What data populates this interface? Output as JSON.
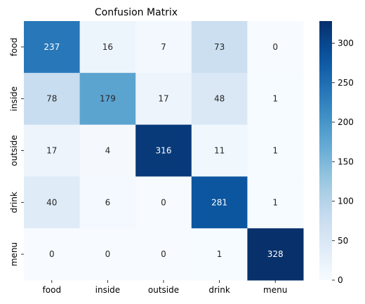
{
  "chart_data": {
    "type": "heatmap",
    "title": "Confusion Matrix",
    "xlabel": "",
    "ylabel": "",
    "row_labels": [
      "food",
      "inside",
      "outside",
      "drink",
      "menu"
    ],
    "col_labels": [
      "food",
      "inside",
      "outside",
      "drink",
      "menu"
    ],
    "values": [
      [
        237,
        16,
        7,
        73,
        0
      ],
      [
        78,
        179,
        17,
        48,
        1
      ],
      [
        17,
        4,
        316,
        11,
        1
      ],
      [
        40,
        6,
        0,
        281,
        1
      ],
      [
        0,
        0,
        0,
        1,
        328
      ]
    ],
    "colormap": "Blues",
    "vmin": 0,
    "vmax": 328,
    "colorbar_ticks": [
      0,
      50,
      100,
      150,
      200,
      250,
      300
    ],
    "grid": false
  }
}
